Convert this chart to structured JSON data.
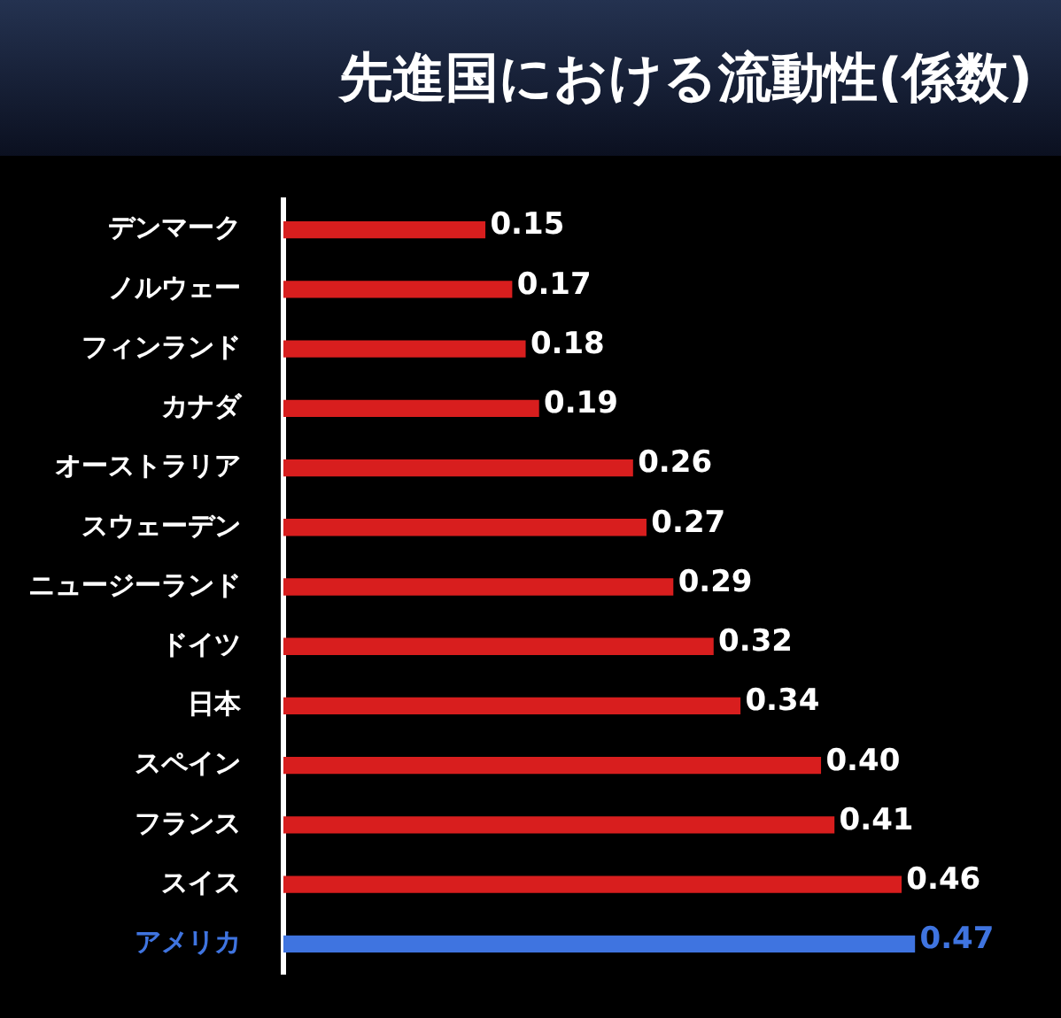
{
  "chart_data": {
    "type": "bar",
    "orientation": "horizontal",
    "title": "先進国における流動性(係数)",
    "categories": [
      "デンマーク",
      "ノルウェー",
      "フィンランド",
      "カナダ",
      "オーストラリア",
      "スウェーデン",
      "ニュージーランド",
      "ドイツ",
      "日本",
      "スペイン",
      "フランス",
      "スイス",
      "アメリカ"
    ],
    "values": [
      0.15,
      0.17,
      0.18,
      0.19,
      0.26,
      0.27,
      0.29,
      0.32,
      0.34,
      0.4,
      0.41,
      0.46,
      0.47
    ],
    "colors": [
      "#d81e1e",
      "#d81e1e",
      "#d81e1e",
      "#d81e1e",
      "#d81e1e",
      "#d81e1e",
      "#d81e1e",
      "#d81e1e",
      "#d81e1e",
      "#d81e1e",
      "#d81e1e",
      "#d81e1e",
      "#3f74e0"
    ],
    "value_labels": [
      "0.15",
      "0.17",
      "0.18",
      "0.19",
      "0.26",
      "0.27",
      "0.29",
      "0.32",
      "0.34",
      "0.40",
      "0.41",
      "0.46",
      "0.47"
    ],
    "tick_labels": "y",
    "grid": false,
    "legend": false
  }
}
